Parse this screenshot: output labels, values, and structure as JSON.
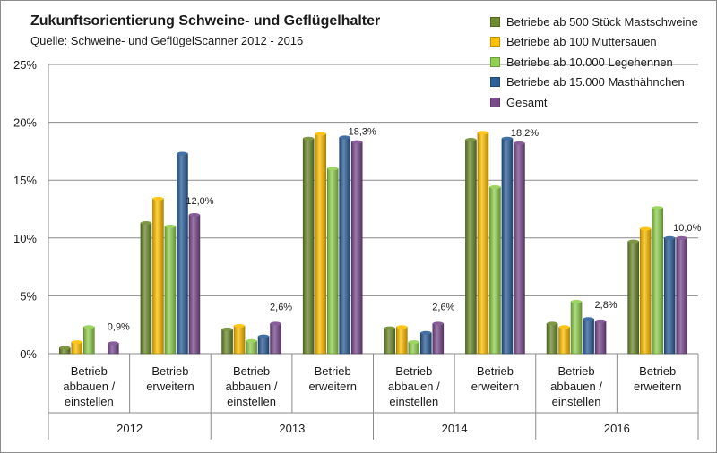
{
  "chart_data": {
    "type": "bar",
    "title": "Zukunftsorientierung Schweine- und Geflügelhalter",
    "subtitle": "Quelle: Schweine- und GeflügelScanner 2012 - 2016",
    "ylim": [
      0,
      25
    ],
    "yticks": [
      "0%",
      "5%",
      "10%",
      "15%",
      "20%",
      "25%"
    ],
    "legend_position": "top-right",
    "grid": true,
    "groups": [
      {
        "year": "2012",
        "categories": [
          {
            "label": "Betrieb abbauen / einstellen",
            "values": [
              0.5,
              1.0,
              2.3,
              null,
              0.9
            ]
          },
          {
            "label": "Betrieb erweitern",
            "values": [
              11.3,
              13.4,
              11.0,
              17.3,
              12.0
            ]
          }
        ]
      },
      {
        "year": "2013",
        "categories": [
          {
            "label": "Betrieb abbauen / einstellen",
            "values": [
              2.1,
              2.4,
              1.1,
              1.5,
              2.6
            ]
          },
          {
            "label": "Betrieb erweitern",
            "values": [
              18.6,
              19.0,
              16.0,
              18.7,
              18.3
            ]
          }
        ]
      },
      {
        "year": "2014",
        "categories": [
          {
            "label": "Betrieb abbauen / einstellen",
            "values": [
              2.2,
              2.3,
              1.0,
              1.8,
              2.6
            ]
          },
          {
            "label": "Betrieb erweitern",
            "values": [
              18.5,
              19.1,
              14.4,
              18.6,
              18.2
            ]
          }
        ]
      },
      {
        "year": "2016",
        "categories": [
          {
            "label": "Betrieb abbauen / einstellen",
            "values": [
              2.6,
              2.3,
              4.5,
              3.0,
              2.8
            ]
          },
          {
            "label": "Betrieb erweitern",
            "values": [
              9.7,
              10.8,
              12.6,
              10.0,
              10.0
            ]
          }
        ]
      }
    ],
    "series": [
      {
        "name": "Betriebe ab 500 Stück Mastschweine",
        "color": "#6e8b2e"
      },
      {
        "name": "Betriebe ab 100 Muttersauen",
        "color": "#ffc000"
      },
      {
        "name": "Betriebe ab 10.000 Legehennen",
        "color": "#92d050"
      },
      {
        "name": "Betriebe ab 15.000 Masthähnchen",
        "color": "#2e5f99"
      },
      {
        "name": "Gesamt",
        "color": "#7a4c8e"
      }
    ],
    "data_labels": [
      {
        "group": 0,
        "category": 0,
        "series": 4,
        "text": "0,9%"
      },
      {
        "group": 0,
        "category": 1,
        "series": 4,
        "text": "12,0%"
      },
      {
        "group": 1,
        "category": 0,
        "series": 4,
        "text": "2,6%"
      },
      {
        "group": 1,
        "category": 1,
        "series": 4,
        "text": "18,3%"
      },
      {
        "group": 2,
        "category": 0,
        "series": 4,
        "text": "2,6%"
      },
      {
        "group": 2,
        "category": 1,
        "series": 4,
        "text": "18,2%"
      },
      {
        "group": 3,
        "category": 0,
        "series": 4,
        "text": "2,8%"
      },
      {
        "group": 3,
        "category": 1,
        "series": 4,
        "text": "10,0%"
      }
    ]
  }
}
